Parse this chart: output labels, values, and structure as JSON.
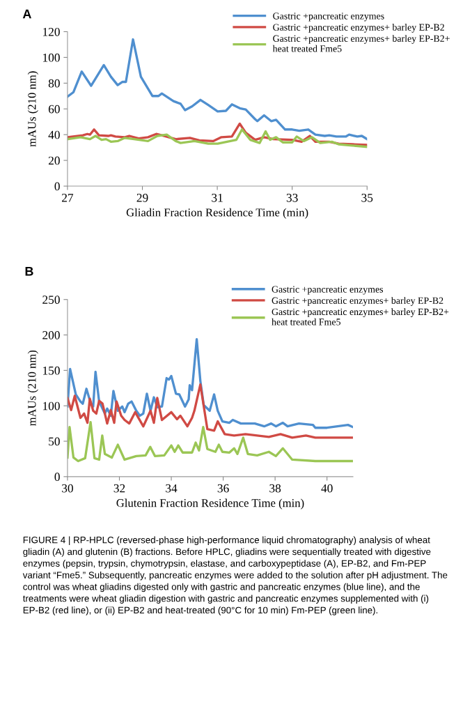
{
  "chart_data": [
    {
      "type": "line",
      "title": "A",
      "xlabel": "Gliadin Fraction Residence Time (min)",
      "ylabel": "mAUs (210 nm)",
      "xlim": [
        27,
        35
      ],
      "xticks": [
        27,
        29,
        31,
        33,
        35
      ],
      "ylim": [
        0,
        120
      ],
      "yticks": [
        0,
        20,
        40,
        60,
        80,
        100,
        120
      ],
      "legend": "top right",
      "grid": false,
      "marker": "none",
      "line_style": "solid",
      "series": [
        {
          "name": "Gastric +pancreatic enzymes",
          "color": "#4f8fcf",
          "x": [
            27,
            27.16,
            27.38,
            27.63,
            27.97,
            28.16,
            28.34,
            28.47,
            28.56,
            28.75,
            28.96,
            29.27,
            29.43,
            29.52,
            29.83,
            30.02,
            30.14,
            30.33,
            30.55,
            30.76,
            31.01,
            31.23,
            31.39,
            31.6,
            31.76,
            32.01,
            32.07,
            32.25,
            32.44,
            32.57,
            32.81,
            33,
            33.19,
            33.43,
            33.62,
            33.87,
            33.99,
            34.18,
            34.43,
            34.52,
            34.74,
            34.86,
            35
          ],
          "values": [
            69.5,
            73,
            89,
            78,
            94,
            85,
            78.5,
            81,
            81,
            114,
            85,
            70,
            70,
            72,
            66,
            64,
            59,
            62,
            67,
            63,
            58,
            58.5,
            63.5,
            60.5,
            59.5,
            52,
            50.5,
            55,
            50.5,
            51.5,
            44,
            44,
            43,
            44,
            40,
            39,
            39.5,
            38.5,
            38.5,
            40,
            38.5,
            39,
            36.5
          ]
        },
        {
          "name": "Gastric +pancreatic enzymes+ barley EP-B2",
          "color": "#d04a44",
          "x": [
            27,
            27.41,
            27.53,
            27.6,
            27.71,
            27.84,
            28.09,
            28.16,
            28.28,
            28.53,
            28.65,
            28.9,
            29.15,
            29.37,
            29.52,
            29.89,
            30.27,
            30.52,
            30.89,
            31.11,
            31.39,
            31.6,
            31.76,
            32.01,
            32.25,
            32.5,
            33,
            33.25,
            33.47,
            33.62,
            33.99,
            34.24,
            34.61,
            35
          ],
          "values": [
            38,
            39.5,
            40.5,
            40,
            44,
            39.5,
            39,
            39.5,
            38.5,
            38,
            39,
            37,
            38,
            40.5,
            39.5,
            36.5,
            37.5,
            35.5,
            35,
            38,
            38.5,
            48.5,
            41.5,
            36,
            38,
            36.5,
            36,
            34.5,
            39,
            34.5,
            34.5,
            33,
            32.5,
            32
          ]
        },
        {
          "name": "Gastric +pancreatic enzymes+ barley EP-B2+\nheat treated Fme5",
          "color": "#9bc655",
          "x": [
            27,
            27.35,
            27.6,
            27.75,
            27.91,
            28.03,
            28.16,
            28.34,
            28.53,
            28.78,
            29.15,
            29.4,
            29.65,
            29.89,
            30.02,
            30.39,
            30.76,
            31.01,
            31.26,
            31.51,
            31.66,
            31.88,
            32.13,
            32.29,
            32.41,
            32.57,
            32.75,
            33,
            33.12,
            33.31,
            33.53,
            33.75,
            34.06,
            34.24,
            34.61,
            35
          ],
          "values": [
            36.5,
            38,
            36.5,
            39,
            36,
            36.5,
            34.5,
            35,
            37.5,
            36.5,
            35,
            39,
            40,
            35,
            33.5,
            35,
            33,
            33,
            34.5,
            36,
            44,
            36,
            33.5,
            42.5,
            36,
            38,
            34,
            34,
            38.5,
            35,
            38,
            33.5,
            34.5,
            32.5,
            31.5,
            30.5
          ]
        }
      ]
    },
    {
      "type": "line",
      "title": "B",
      "xlabel": "Glutenin Fraction Residence Time (min)",
      "ylabel": "mAUs (210 nm)",
      "xlim": [
        30,
        41
      ],
      "xticks": [
        30,
        32,
        34,
        36,
        38,
        40
      ],
      "ylim": [
        0,
        250
      ],
      "yticks": [
        0,
        50,
        100,
        150,
        200,
        250
      ],
      "legend": "top right",
      "grid": false,
      "marker": "none",
      "line_style": "solid",
      "series": [
        {
          "name": "Gastric +pancreatic enzymes",
          "color": "#4f8fcf",
          "x": [
            30,
            30.1,
            30.32,
            30.5,
            30.59,
            30.73,
            30.9,
            30.99,
            31.08,
            31.22,
            31.44,
            31.53,
            31.67,
            31.77,
            31.94,
            32.11,
            32.2,
            32.34,
            32.47,
            32.65,
            32.79,
            32.92,
            33.06,
            33.2,
            33.33,
            33.46,
            33.64,
            33.82,
            33.91,
            34,
            34.18,
            34.31,
            34.53,
            34.67,
            34.71,
            34.8,
            34.98,
            35.12,
            35.25,
            35.48,
            35.65,
            35.79,
            35.97,
            36.24,
            36.37,
            36.68,
            37.22,
            37.58,
            37.85,
            38.03,
            38.3,
            38.48,
            38.92,
            39.46,
            39.55,
            40,
            40.81,
            41
          ],
          "values": [
            99,
            152,
            116,
            106,
            103,
            124,
            103,
            99,
            148,
            106,
            89,
            96,
            86,
            121,
            93,
            99,
            91,
            103,
            106,
            93,
            86,
            89,
            117,
            93,
            112,
            98,
            99,
            139,
            137,
            142,
            117,
            116,
            99,
            109,
            129,
            122,
            194,
            135,
            101,
            93,
            116,
            93,
            78,
            76,
            80,
            75,
            75,
            71,
            75,
            71,
            76,
            71,
            75,
            73,
            69,
            69,
            73,
            70
          ]
        },
        {
          "name": "Gastric +pancreatic enzymes+ barley EP-B2",
          "color": "#d04a44",
          "x": [
            30,
            30.14,
            30.28,
            30.5,
            30.64,
            30.77,
            30.86,
            30.99,
            31.11,
            31.22,
            31.35,
            31.53,
            31.67,
            31.8,
            31.89,
            32.07,
            32.2,
            32.38,
            32.61,
            32.92,
            33.2,
            33.33,
            33.46,
            33.64,
            34,
            34.22,
            34.35,
            34.62,
            34.8,
            34.89,
            35.12,
            35.39,
            35.65,
            35.79,
            36.06,
            36.42,
            36.86,
            37.76,
            38.21,
            38.66,
            39.19,
            39.55,
            41
          ],
          "values": [
            111,
            94,
            114,
            83,
            89,
            76,
            110,
            93,
            89,
            107,
            103,
            75,
            94,
            76,
            106,
            86,
            80,
            75,
            91,
            71,
            93,
            76,
            111,
            80,
            91,
            81,
            86,
            71,
            83,
            93,
            130,
            67,
            65,
            78,
            60,
            58,
            60,
            56,
            60,
            55,
            58,
            55,
            55
          ]
        },
        {
          "name": "Gastric +pancreatic enzymes+ barley EP-B2+\nheat treated Fme5",
          "color": "#9bc655",
          "x": [
            30,
            30.08,
            30.23,
            30.41,
            30.68,
            30.89,
            31.04,
            31.22,
            31.34,
            31.44,
            31.71,
            31.94,
            32.2,
            32.65,
            33.01,
            33.19,
            33.37,
            33.73,
            34,
            34.13,
            34.27,
            34.44,
            34.8,
            34.94,
            35.07,
            35.23,
            35.39,
            35.7,
            35.83,
            35.97,
            36.24,
            36.42,
            36.55,
            36.77,
            36.95,
            37.31,
            37.76,
            38.03,
            38.3,
            38.66,
            39.55,
            41
          ],
          "values": [
            27,
            70,
            27,
            22,
            26,
            77,
            26,
            24,
            58,
            32,
            27,
            45,
            24,
            29,
            30,
            42,
            29,
            30,
            44,
            35,
            44,
            34,
            34,
            48,
            37,
            70,
            39,
            35,
            45,
            35,
            34,
            40,
            32,
            55,
            32,
            30,
            35,
            29,
            40,
            24,
            22,
            22
          ]
        }
      ],
      "annotations": [
        "FIGURE 4 | RP-HPLC (reversed-phase high-performance liquid chromatography) analysis of wheat gliadin (A) and glutenin (B) fractions. Before HPLC, gliadins were sequentially treated with digestive enzymes (pepsin, trypsin, chymotrypsin, elastase, and carboxypeptidase (A), EP-B2, and Fm-PEP variant “Fme5.” Subsequently, pancreatic enzymes were added to the solution after pH adjustment. The control was wheat gliadins digested only with gastric and pancreatic enzymes (blue line), and the treatments were wheat gliadin digestion with gastric and pancreatic enzymes supplemented with (i) EP-B2 (red line), or (ii) EP-B2 and heat-treated (90°C for 10 min) Fm-PEP (green line)."
      ]
    }
  ]
}
